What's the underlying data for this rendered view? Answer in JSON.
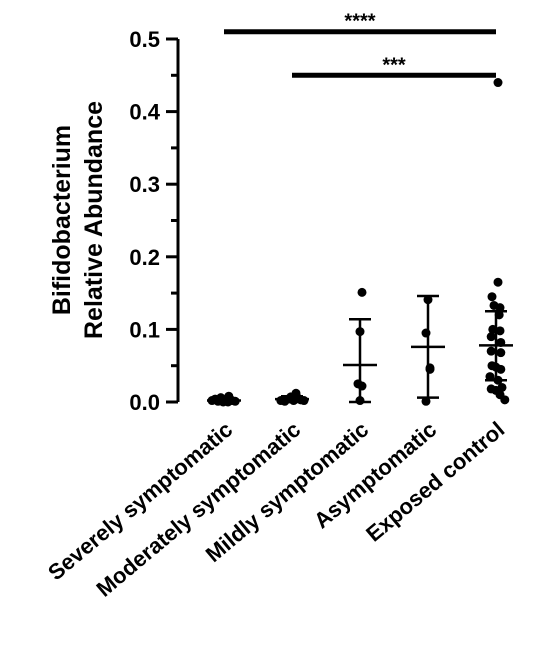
{
  "chart_data": {
    "type": "scatter",
    "subtype": "dot plot with mean and standard deviation",
    "title": "",
    "ylabel_lines": [
      "Bifidobacterium",
      "Relative  Abundance"
    ],
    "ylim": [
      0,
      0.5
    ],
    "yticks": [
      "0.0",
      "0.1",
      "0.2",
      "0.3",
      "0.4",
      "0.5"
    ],
    "categories": [
      "Severely symptomatic",
      "Moderately symptomatic",
      "Mildly symptomatic",
      "Asymptomatic",
      "Exposed control"
    ],
    "groups": [
      {
        "name": "Severely symptomatic",
        "mean": 0.002,
        "sd_low": 0.0,
        "sd_high": 0.005,
        "points": [
          [
            -0.3,
            0.002
          ],
          [
            -0.22,
            0.004
          ],
          [
            -0.15,
            0.001
          ],
          [
            -0.08,
            0.006
          ],
          [
            0.0,
            0.003
          ],
          [
            0.06,
            0.001
          ],
          [
            0.12,
            0.008
          ],
          [
            0.2,
            0.002
          ],
          [
            0.28,
            0.001
          ],
          [
            -0.02,
            0.0
          ],
          [
            0.1,
            0.0
          ]
        ]
      },
      {
        "name": "Moderately symptomatic",
        "mean": 0.004,
        "sd_low": 0.0,
        "sd_high": 0.008,
        "points": [
          [
            -0.28,
            0.002
          ],
          [
            -0.18,
            0.001
          ],
          [
            -0.1,
            0.004
          ],
          [
            -0.03,
            0.007
          ],
          [
            0.04,
            0.002
          ],
          [
            0.1,
            0.012
          ],
          [
            0.16,
            0.005
          ],
          [
            0.22,
            0.003
          ],
          [
            0.3,
            0.002
          ]
        ]
      },
      {
        "name": "Mildly symptomatic",
        "mean": 0.051,
        "sd_low": -0.012,
        "sd_high": 0.114,
        "points": [
          [
            0.05,
            0.151
          ],
          [
            0.0,
            0.097
          ],
          [
            -0.05,
            0.025
          ],
          [
            0.05,
            0.022
          ],
          [
            0.0,
            0.002
          ]
        ]
      },
      {
        "name": "Asymptomatic",
        "mean": 0.076,
        "sd_low": 0.006,
        "sd_high": 0.146,
        "points": [
          [
            0.0,
            0.141
          ],
          [
            -0.05,
            0.095
          ],
          [
            0.05,
            0.047
          ],
          [
            0.05,
            0.045
          ],
          [
            -0.05,
            0.001
          ]
        ]
      },
      {
        "name": "Exposed control",
        "mean": 0.078,
        "sd_low": 0.03,
        "sd_high": 0.125,
        "points": [
          [
            0.05,
            0.44
          ],
          [
            0.05,
            0.165
          ],
          [
            -0.1,
            0.145
          ],
          [
            -0.05,
            0.133
          ],
          [
            0.1,
            0.13
          ],
          [
            0.08,
            0.12
          ],
          [
            -0.08,
            0.1
          ],
          [
            0.1,
            0.098
          ],
          [
            -0.12,
            0.09
          ],
          [
            0.12,
            0.082
          ],
          [
            -0.12,
            0.07
          ],
          [
            0.12,
            0.068
          ],
          [
            -0.1,
            0.05
          ],
          [
            0.0,
            0.048
          ],
          [
            0.12,
            0.045
          ],
          [
            -0.15,
            0.035
          ],
          [
            0.05,
            0.03
          ],
          [
            0.15,
            0.02
          ],
          [
            -0.12,
            0.018
          ],
          [
            0.0,
            0.016
          ],
          [
            0.1,
            0.01
          ],
          [
            0.22,
            0.003
          ]
        ]
      }
    ],
    "significance": [
      {
        "label": "****",
        "from": 1,
        "to": 5,
        "y": 0.51
      },
      {
        "label": "***",
        "from": 2,
        "to": 5,
        "y": 0.45
      }
    ],
    "grid": false,
    "legend": "none"
  }
}
